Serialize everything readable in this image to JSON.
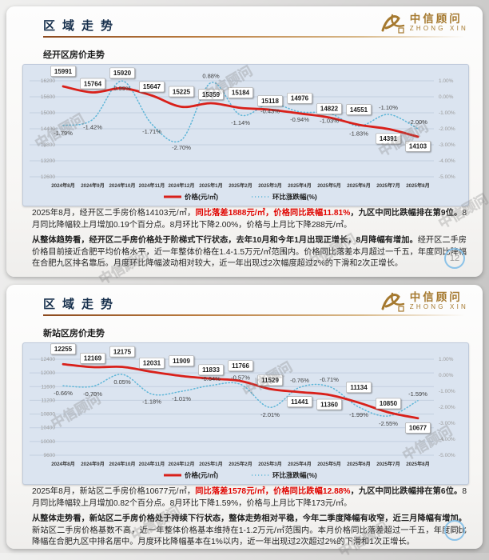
{
  "page": {
    "watermark": "中信顾问"
  },
  "chart_data": [
    {
      "type": "line",
      "title": "经开区房价走势",
      "categories": [
        "2024年8月",
        "2024年9月",
        "2024年10月",
        "2024年11月",
        "2024年12月",
        "2025年1月",
        "2025年2月",
        "2025年3月",
        "2025年4月",
        "2025年5月",
        "2025年6月",
        "2025年7月",
        "2025年8月"
      ],
      "series": [
        {
          "name": "价格(元/㎡)",
          "axis": "left",
          "color": "#d9201a",
          "style": "solid",
          "values": [
            15991,
            15764,
            15920,
            15647,
            15225,
            15359,
            15184,
            15118,
            14976,
            14822,
            14551,
            14391,
            14103
          ],
          "label_side": [
            "above",
            "above",
            "above",
            "above",
            "above",
            "above",
            "above",
            "above",
            "above",
            "above",
            "above",
            "below",
            "below"
          ]
        },
        {
          "name": "环比涨跌幅(%)",
          "axis": "right",
          "color": "#5fb6d8",
          "style": "dotted",
          "values": [
            -1.79,
            -1.42,
            0.99,
            -1.71,
            -2.7,
            0.88,
            -1.14,
            -0.43,
            -0.94,
            -1.03,
            -1.83,
            -1.1,
            -2.0
          ],
          "labels": [
            "-1.79%",
            "-1.42%",
            "0.99%",
            "-1.71%",
            "-2.70%",
            "0.88%",
            "-1.14%",
            "-0.43%",
            "-0.94%",
            "-1.03%",
            "-1.83%",
            "-1.10%",
            "-2.00%"
          ],
          "label_side": [
            "below",
            "below",
            "below",
            "below",
            "below",
            "above",
            "below",
            "below",
            "below",
            "below",
            "below",
            "above",
            "above"
          ]
        }
      ],
      "left_axis": {
        "max": 16200,
        "min": 12600,
        "ticks": [
          "16200",
          "15600",
          "15000",
          "14400",
          "13800",
          "13200",
          "12600"
        ]
      },
      "right_axis": {
        "max": 1,
        "min": -5,
        "ticks": [
          "1.00%",
          "0.00%",
          "-1.00%",
          "-2.00%",
          "-3.00%",
          "-4.00%",
          "-5.00%"
        ]
      },
      "legend": [
        "价格(元/㎡)",
        "环比涨跌幅(%)"
      ],
      "grid": true,
      "legend_position": "bottom"
    },
    {
      "type": "line",
      "title": "新站区房价走势",
      "categories": [
        "2024年8月",
        "2024年9月",
        "2024年10月",
        "2024年11月",
        "2024年12月",
        "2025年1月",
        "2025年2月",
        "2025年3月",
        "2025年4月",
        "2025年5月",
        "2025年6月",
        "2025年7月",
        "2025年8月"
      ],
      "series": [
        {
          "name": "价格(元/㎡)",
          "axis": "left",
          "color": "#d9201a",
          "style": "solid",
          "values": [
            12255,
            12169,
            12175,
            12031,
            11909,
            11833,
            11766,
            11529,
            11441,
            11360,
            11134,
            10850,
            10677
          ],
          "label_side": [
            "above",
            "above",
            "above",
            "above",
            "above",
            "above",
            "above",
            "above",
            "below",
            "below",
            "above",
            "above",
            "below"
          ]
        },
        {
          "name": "环比涨跌幅(%)",
          "axis": "right",
          "color": "#5fb6d8",
          "style": "dotted",
          "values": [
            -0.66,
            -0.7,
            0.05,
            -1.18,
            -1.01,
            -0.64,
            -0.57,
            -2.01,
            -0.76,
            -0.71,
            -1.99,
            -2.55,
            -1.59
          ],
          "labels": [
            "-0.66%",
            "-0.70%",
            "0.05%",
            "-1.18%",
            "-1.01%",
            "-0.64%",
            "-0.57%",
            "-2.01%",
            "-0.76%",
            "-0.71%",
            "-1.99%",
            "-2.55%",
            "-1.59%"
          ],
          "label_side": [
            "below",
            "below",
            "below",
            "below",
            "below",
            "above",
            "above",
            "below",
            "above",
            "above",
            "below",
            "below",
            "above"
          ]
        }
      ],
      "left_axis": {
        "max": 12400,
        "min": 9600,
        "ticks": [
          "12400",
          "12000",
          "11600",
          "11200",
          "10800",
          "10400",
          "10000",
          "9600"
        ]
      },
      "right_axis": {
        "max": 1,
        "min": -5,
        "ticks": [
          "1.00%",
          "0.00%",
          "-1.00%",
          "-2.00%",
          "-3.00%",
          "-4.00%",
          "-5.00%"
        ]
      },
      "legend": [
        "价格(元/㎡)",
        "环比涨跌幅(%)"
      ],
      "grid": true,
      "legend_position": "bottom"
    }
  ],
  "slides": [
    {
      "header": {
        "title": "区域走势",
        "logo_cn": "中信顾问",
        "logo_en": "ZHONG XIN"
      },
      "page_number": "12",
      "analysis": {
        "p1a": "2025年8月，经开区二手房价格14103元/㎡，",
        "p1b": "同比落差1888元/㎡，价格同比跌幅11.81%",
        "p1c": "，九区中同比跌幅排在第9位。",
        "p1d": "8月同比降幅较上月增加0.19个百分点。8月环比下降2.00%，价格与上月比下降288元/㎡。",
        "p2a": "从整体趋势看，经开区二手房价格处于阶梯式下行状态，去年10月和今年1月出现正增长，8月降幅有增加。",
        "p2b": "经开区二手房价格目前接近合肥平均价格水平，近一年整体价格在1.4-1.5万元/㎡范围内。价格同比落差本月超过一千五，年度同比降幅在合肥九区排名靠后。月度环比降幅波动相对较大，近一年出现过2次幅度超过2%的下滑和2次正增长。"
      }
    },
    {
      "header": {
        "title": "区域走势",
        "logo_cn": "中信顾问",
        "logo_en": "ZHONG XIN"
      },
      "page_number": "13",
      "analysis": {
        "p1a": "2025年8月，新站区二手房价格10677元/㎡，",
        "p1b": "同比落差1578元/㎡，价格同比跌幅12.88%",
        "p1c": "，九区中同比跌幅排在第6位。",
        "p1d": "8月同比降幅较上月增加0.82个百分点。8月环比下降1.59%，价格与上月比下降173元/㎡。",
        "p2a": "从整体走势看，新站区二手房价格处于持续下行状态，整体走势相对平稳，今年二季度降幅有收窄，近三月降幅有增加。",
        "p2b": "新站区二手房价格基数不高，近一年整体价格基本维持在1-1.2万元/㎡范围内。本月价格同比落差超过一千五，年度同比降幅在合肥九区中排名居中。月度环比降幅基本在1%以内，近一年出现过2次超过2%的下滑和1次正增长。"
      }
    }
  ]
}
